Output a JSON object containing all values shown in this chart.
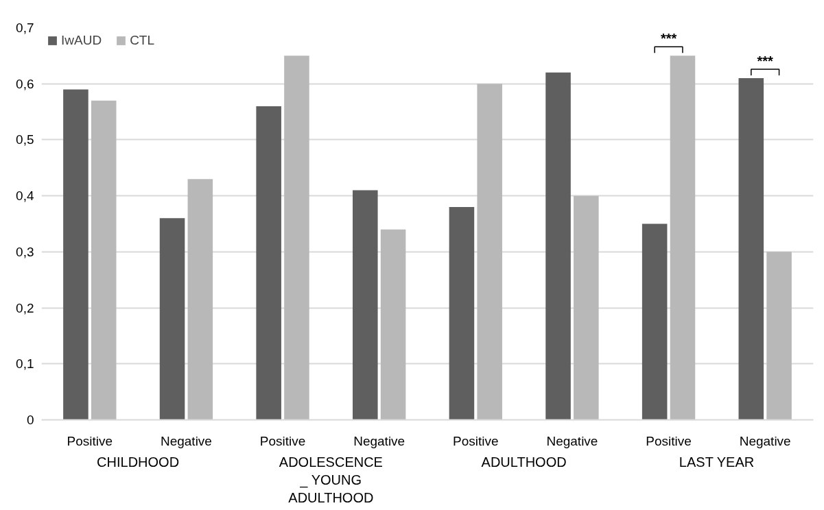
{
  "chart_data": {
    "type": "bar",
    "categories": [
      "Positive",
      "Negative",
      "Positive",
      "Negative",
      "Positive",
      "Negative",
      "Positive",
      "Negative"
    ],
    "series": [
      {
        "name": "IwAUD",
        "color": "#5f5f5f",
        "values": [
          0.59,
          0.36,
          0.56,
          0.41,
          0.38,
          0.62,
          0.35,
          0.61
        ]
      },
      {
        "name": "CTL",
        "color": "#b8b8b8",
        "values": [
          0.57,
          0.43,
          0.65,
          0.34,
          0.6,
          0.4,
          0.65,
          0.3
        ]
      }
    ],
    "ylim": [
      0,
      0.7
    ],
    "yticks": [
      0,
      {
        "value": 0.1,
        "label": "0,1"
      },
      {
        "value": 0.2,
        "label": "0,2"
      },
      {
        "value": 0.3,
        "label": "0,3"
      },
      {
        "value": 0.4,
        "label": "0,4"
      },
      {
        "value": 0.5,
        "label": "0,5"
      },
      {
        "value": 0.6,
        "label": "0,6"
      },
      {
        "value": 0.7,
        "label": "0,7"
      }
    ],
    "grid": "y",
    "legend": "top left",
    "annotations": [
      "CHILDHOOD",
      "ADOLESCENCE\n_ YOUNG\nADULTHOOD",
      "ADULTHOOD",
      "LAST YEAR",
      "***",
      "***"
    ]
  }
}
